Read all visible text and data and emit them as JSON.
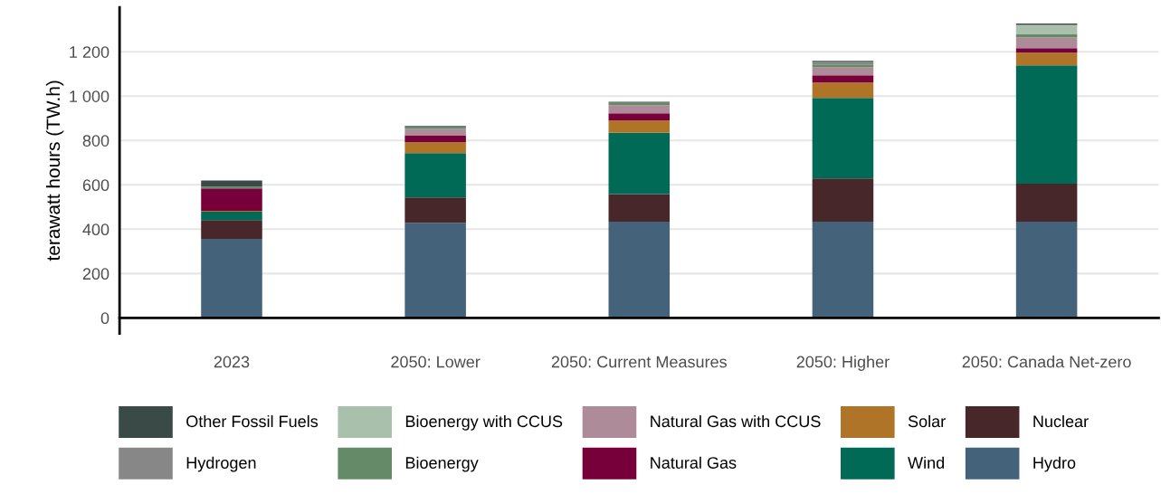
{
  "chart_data": {
    "type": "bar",
    "stacked": true,
    "ylabel": "terawatt hours (TW.h)",
    "categories": [
      "2023",
      "2050: Lower",
      "2050: Current Measures",
      "2050: Higher",
      "2050: Canada Net-zero"
    ],
    "series": [
      {
        "name": "Hydro",
        "color": "#44627a",
        "values": [
          356,
          429,
          434,
          434,
          434
        ]
      },
      {
        "name": "Nuclear",
        "color": "#47272a",
        "values": [
          85,
          114,
          124,
          195,
          171
        ]
      },
      {
        "name": "Wind",
        "color": "#006a56",
        "values": [
          38,
          200,
          277,
          363,
          534
        ]
      },
      {
        "name": "Solar",
        "color": "#b07428",
        "values": [
          4,
          49,
          55,
          69,
          57
        ]
      },
      {
        "name": "Natural Gas",
        "color": "#78003a",
        "values": [
          101,
          32,
          32,
          33,
          20
        ]
      },
      {
        "name": "Natural Gas with CCUS",
        "color": "#ae8b98",
        "values": [
          0,
          28,
          37,
          37,
          49
        ]
      },
      {
        "name": "Bioenergy",
        "color": "#648a68",
        "values": [
          8,
          8,
          11,
          12,
          13
        ]
      },
      {
        "name": "Bioenergy with CCUS",
        "color": "#a9c0ad",
        "values": [
          0,
          0,
          0,
          0,
          40
        ]
      },
      {
        "name": "Hydrogen",
        "color": "#878787",
        "values": [
          0,
          0,
          0,
          11,
          4
        ]
      },
      {
        "name": "Other Fossil Fuels",
        "color": "#3a4a47",
        "values": [
          28,
          5,
          5,
          5,
          5
        ]
      }
    ],
    "ylim": [
      -70,
      1400
    ],
    "yticks": [
      0,
      200,
      400,
      600,
      800,
      {
        "value": 1000,
        "label": "1 000"
      },
      {
        "value": 1200,
        "label": "1 200"
      }
    ],
    "grid": "y",
    "legend": "bottom"
  }
}
